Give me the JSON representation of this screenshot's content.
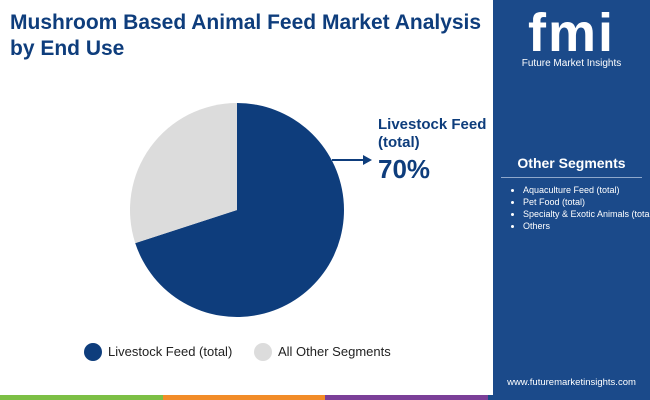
{
  "chart_data": {
    "type": "pie",
    "title": "Mushroom Based Animal Feed Market Analysis by End Use",
    "categories": [
      "Livestock Feed (total)",
      "All Other Segments"
    ],
    "values": [
      70,
      30
    ],
    "value_labels": [
      "70%",
      null
    ],
    "colors": [
      "#0e3d7c",
      "#dcdcdc"
    ]
  },
  "logo": {
    "text": "fmi",
    "tagline": "Future Market Insights"
  },
  "sidebar": {
    "heading": "Other Segments",
    "items": [
      "Aquaculture Feed (total)",
      "Pet Food (total)",
      "Specialty & Exotic Animals (total)",
      "Others"
    ]
  },
  "footer": {
    "website": "www.futuremarketinsights.com"
  }
}
